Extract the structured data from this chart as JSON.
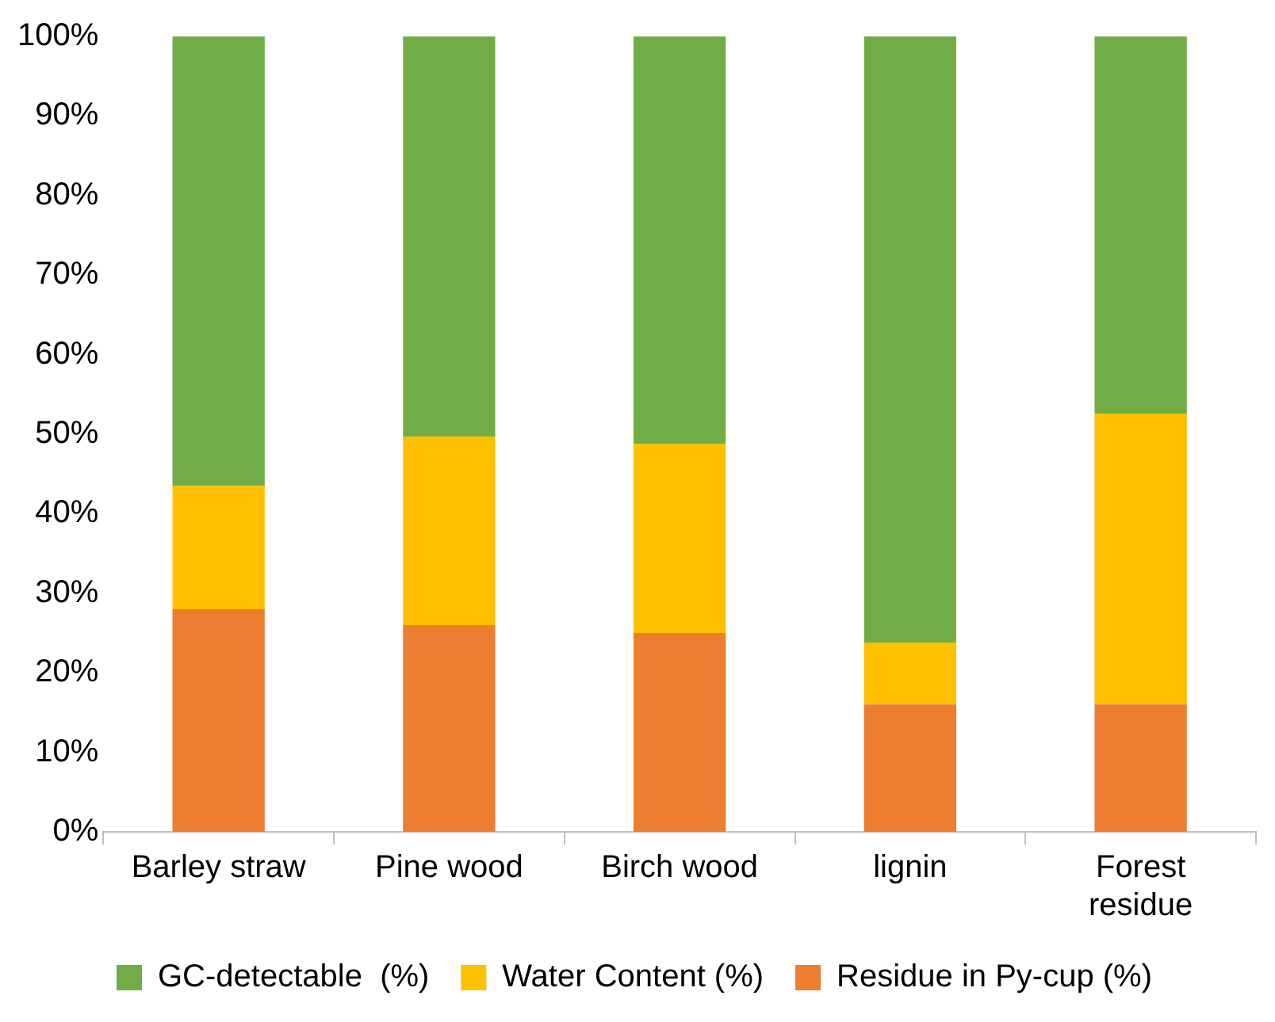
{
  "chart_data": {
    "type": "bar",
    "stacked": true,
    "categories": [
      "Barley straw",
      "Pine wood",
      "Birch wood",
      "lignin",
      "Forest residue"
    ],
    "series": [
      {
        "name": "Residue in Py-cup (%)",
        "color": "#ed7d31",
        "values": [
          28,
          26,
          25,
          16,
          16
        ]
      },
      {
        "name": "Water Content (%)",
        "color": "#ffc000",
        "values": [
          15.5,
          23.7,
          23.8,
          7.8,
          36.6
        ]
      },
      {
        "name": "GC-detectable  (%)",
        "color": "#70ad47",
        "values": [
          56.5,
          50.3,
          51.2,
          76.2,
          47.4
        ]
      }
    ],
    "ylim": [
      0,
      100
    ],
    "yticks": [
      {
        "value": 0,
        "label": "0%"
      },
      {
        "value": 10,
        "label": "10%"
      },
      {
        "value": 20,
        "label": "20%"
      },
      {
        "value": 30,
        "label": "30%"
      },
      {
        "value": 40,
        "label": "40%"
      },
      {
        "value": 50,
        "label": "50%"
      },
      {
        "value": 60,
        "label": "60%"
      },
      {
        "value": 70,
        "label": "70%"
      },
      {
        "value": 80,
        "label": "80%"
      },
      {
        "value": 90,
        "label": "90%"
      },
      {
        "value": 100,
        "label": "100%"
      }
    ],
    "grid": false,
    "legend": "bottom"
  }
}
